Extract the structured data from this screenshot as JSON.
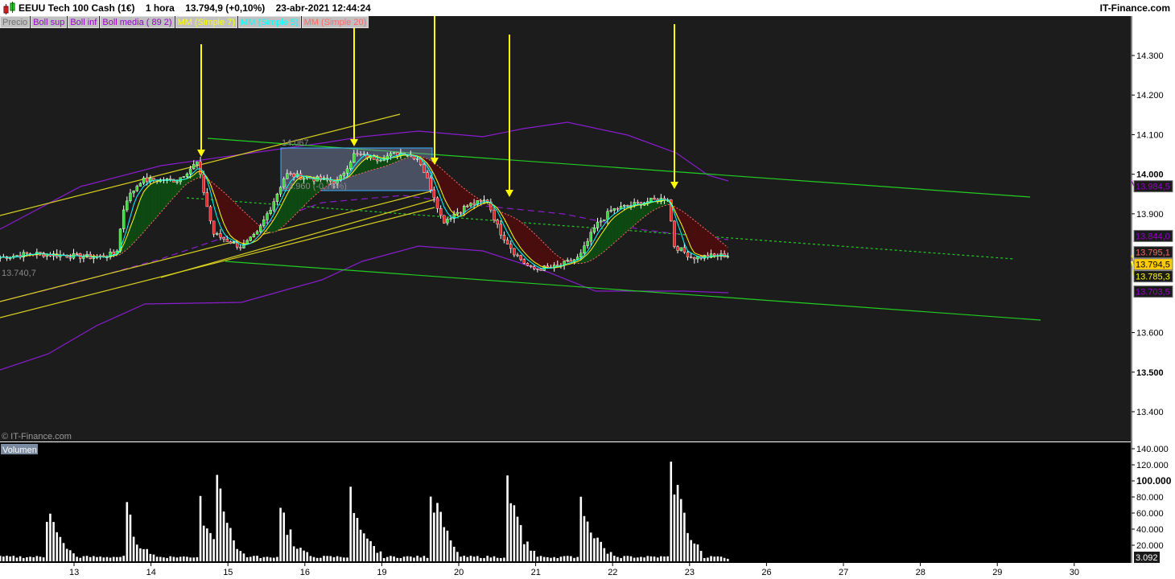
{
  "header": {
    "instrument": "EEUU Tech 100 Cash (1€)",
    "timeframe": "1 hora",
    "last": "13.794,9 (+0,10%)",
    "datetime": "23-abr-2021 12:44:24",
    "site": "IT-Finance.com"
  },
  "legend": [
    {
      "label": "Precio",
      "color": "#707070"
    },
    {
      "label": "Boll sup",
      "color": "#9900cc"
    },
    {
      "label": "Boll inf",
      "color": "#9900cc"
    },
    {
      "label": "Boll media ( 89 2)",
      "color": "#9900cc"
    },
    {
      "label": "MM (Simple 7)",
      "color": "#ffff00"
    },
    {
      "label": "MM (Simple 5)",
      "color": "#00ffff"
    },
    {
      "label": "MM (Simple 20)",
      "color": "#ff6666"
    }
  ],
  "watermark": "© IT-Finance.com",
  "volume_label": "Volumen",
  "annotations": {
    "box_high": "14.067",
    "box_low": "13.960 (-0,76%)",
    "left_low": "13.740,7"
  },
  "chart_data": [
    {
      "type": "candlestick",
      "title": "",
      "ylim": [
        13350,
        14400
      ],
      "y_ticks": [
        "14.300",
        "14.200",
        "14.100",
        "14.000",
        "13.900",
        "13.600",
        "13.500",
        "13.400"
      ],
      "y_tick_values": [
        14300,
        14200,
        14100,
        14000,
        13900,
        13600,
        13500,
        13400
      ],
      "x_ticks": [
        "13",
        "14",
        "15",
        "16",
        "19",
        "20",
        "21",
        "22",
        "23",
        "26",
        "27",
        "28",
        "29",
        "30"
      ],
      "close_path": [
        [
          -0.96,
          13790
        ],
        [
          -0.54,
          13800
        ],
        [
          -0.13,
          13795
        ],
        [
          0.29,
          13790
        ],
        [
          0.55,
          13800
        ],
        [
          0.66,
          13930
        ],
        [
          0.87,
          13985
        ],
        [
          1.34,
          13985
        ],
        [
          1.6,
          14030
        ],
        [
          1.81,
          13850
        ],
        [
          2.18,
          13815
        ],
        [
          2.38,
          13850
        ],
        [
          2.59,
          13930
        ],
        [
          2.75,
          14000
        ],
        [
          3.06,
          13990
        ],
        [
          3.43,
          13980
        ],
        [
          3.64,
          14050
        ],
        [
          3.95,
          14040
        ],
        [
          4.27,
          14055
        ],
        [
          4.48,
          14040
        ],
        [
          4.69,
          13940
        ],
        [
          4.79,
          13880
        ],
        [
          5.1,
          13920
        ],
        [
          5.37,
          13935
        ],
        [
          5.52,
          13860
        ],
        [
          5.73,
          13800
        ],
        [
          5.94,
          13760
        ],
        [
          6.26,
          13765
        ],
        [
          6.57,
          13790
        ],
        [
          6.78,
          13870
        ],
        [
          6.99,
          13910
        ],
        [
          7.41,
          13930
        ],
        [
          7.72,
          13940
        ],
        [
          7.8,
          13820
        ],
        [
          8.03,
          13790
        ],
        [
          8.45,
          13795
        ],
        [
          8.54,
          13795
        ]
      ],
      "price_tags": [
        {
          "text": "13.984,5",
          "value": 13984.5,
          "color": "#9900cc",
          "bg": "#1a1a1a"
        },
        {
          "text": "13.844,0",
          "value": 13844,
          "color": "#9900cc",
          "bg": "#1a1a1a"
        },
        {
          "text": "13.795,1",
          "value": 13803,
          "color": "#ff6666",
          "bg": "#1a1a1a"
        },
        {
          "text": "13.794,5",
          "value": 13794.5,
          "color": "#000000",
          "bg": "#ffcc00"
        },
        {
          "text": "13.785,3",
          "value": 13780,
          "color": "#ffff00",
          "bg": "#1a1a1a"
        },
        {
          "text": "13.703,5",
          "value": 13703.5,
          "color": "#9900cc",
          "bg": "#1a1a1a"
        }
      ]
    },
    {
      "type": "bar",
      "title": "Volumen",
      "ylim": [
        0,
        150000
      ],
      "y_ticks": [
        "140.000",
        "120.000",
        "100.000",
        "80.000",
        "60.000",
        "40.000",
        "20.000"
      ],
      "y_tick_values": [
        140000,
        120000,
        100000,
        80000,
        60000,
        40000,
        20000
      ],
      "last_tag": "3.092",
      "session_peaks": [
        [
          -0.33,
          80000
        ],
        [
          0.7,
          76000
        ],
        [
          1.65,
          98000
        ],
        [
          1.88,
          108000
        ],
        [
          2.7,
          85000
        ],
        [
          3.64,
          98000
        ],
        [
          4.65,
          130000
        ],
        [
          5.65,
          120000
        ],
        [
          6.63,
          98000
        ],
        [
          7.8,
          138000
        ]
      ]
    }
  ]
}
